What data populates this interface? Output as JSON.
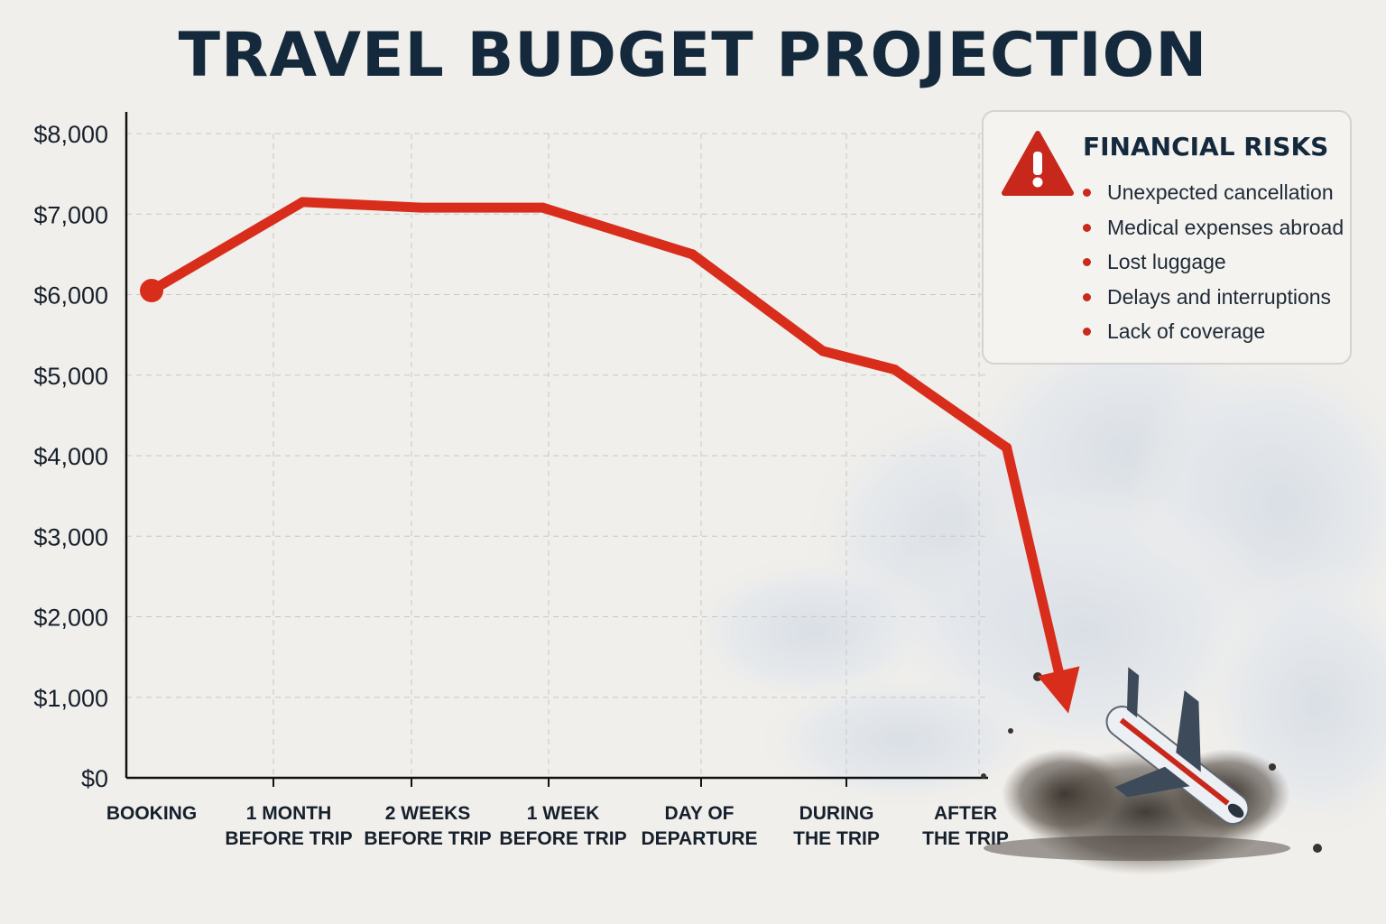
{
  "title": "TRAVEL BUDGET PROJECTION",
  "colors": {
    "line": "#d92d1c",
    "title": "#15293d",
    "warning": "#c8281b",
    "grid": "#c9c7c2",
    "axis": "#111111",
    "background": "#f1efeb"
  },
  "risk_panel": {
    "icon": "warning-triangle-icon",
    "title": "FINANCIAL RISKS",
    "items": [
      "Unexpected cancellation",
      "Medical expenses abroad",
      "Lost luggage",
      "Delays and interruptions",
      "Lack of coverage"
    ]
  },
  "illustration": {
    "icons": [
      "cloud-icon",
      "crashing-airplane-icon",
      "debris-icon"
    ]
  },
  "chart_data": {
    "type": "line",
    "title": "TRAVEL BUDGET PROJECTION",
    "xlabel": "",
    "ylabel": "",
    "ylim": [
      0,
      8000
    ],
    "y_ticks": [
      0,
      1000,
      2000,
      3000,
      4000,
      5000,
      6000,
      7000,
      8000
    ],
    "y_tick_labels": [
      "$0",
      "$1,000",
      "$2,000",
      "$3,000",
      "$4,000",
      "$5,000",
      "$6,000",
      "$7,000",
      "$8,000"
    ],
    "x_tick_labels": [
      [
        "BOOKING"
      ],
      [
        "1 MONTH",
        "BEFORE TRIP"
      ],
      [
        "2 WEEKS",
        "BEFORE TRIP"
      ],
      [
        "1 WEEK",
        "BEFORE TRIP"
      ],
      [
        "DAY OF",
        "DEPARTURE"
      ],
      [
        "DURING",
        "THE TRIP"
      ],
      [
        "AFTER",
        "THE TRIP"
      ]
    ],
    "grid": true,
    "legend": "none",
    "series": [
      {
        "x": [
          0,
          1.1,
          1.95,
          2.85,
          3.95,
          4.9,
          5.45,
          6.3,
          6.75
        ],
        "y": [
          6050,
          7150,
          7080,
          7080,
          6500,
          5300,
          5070,
          4100,
          800
        ]
      }
    ]
  }
}
